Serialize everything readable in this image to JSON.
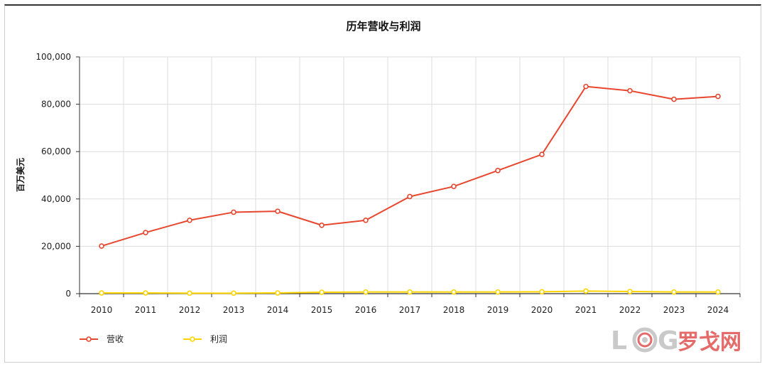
{
  "chart_data": {
    "type": "line",
    "title": "历年营收与利润",
    "ylabel": "百万美元",
    "xlabel": "",
    "categories": [
      "2010",
      "2011",
      "2012",
      "2013",
      "2014",
      "2015",
      "2016",
      "2017",
      "2018",
      "2019",
      "2020",
      "2021",
      "2022",
      "2023",
      "2024"
    ],
    "ylim": [
      0,
      100000
    ],
    "yticks": [
      0,
      20000,
      40000,
      60000,
      80000,
      100000
    ],
    "ytick_labels": [
      "0",
      "20,000",
      "40,000",
      "60,000",
      "80,000",
      "100,000"
    ],
    "grid": true,
    "legend_position": "bottom-left",
    "series": [
      {
        "name": "营收",
        "color": "#e8472f",
        "values": [
          20100,
          25800,
          31000,
          34400,
          34800,
          28900,
          31000,
          41000,
          45300,
          52000,
          58800,
          87500,
          85700,
          82100,
          83300
        ]
      },
      {
        "name": "利润",
        "color": "#ffd400",
        "values": [
          300,
          300,
          200,
          200,
          300,
          600,
          700,
          700,
          700,
          700,
          800,
          1100,
          900,
          700,
          700
        ]
      }
    ]
  },
  "watermark": {
    "letters": [
      "L",
      "G"
    ],
    "brand_text": "罗戈网"
  }
}
